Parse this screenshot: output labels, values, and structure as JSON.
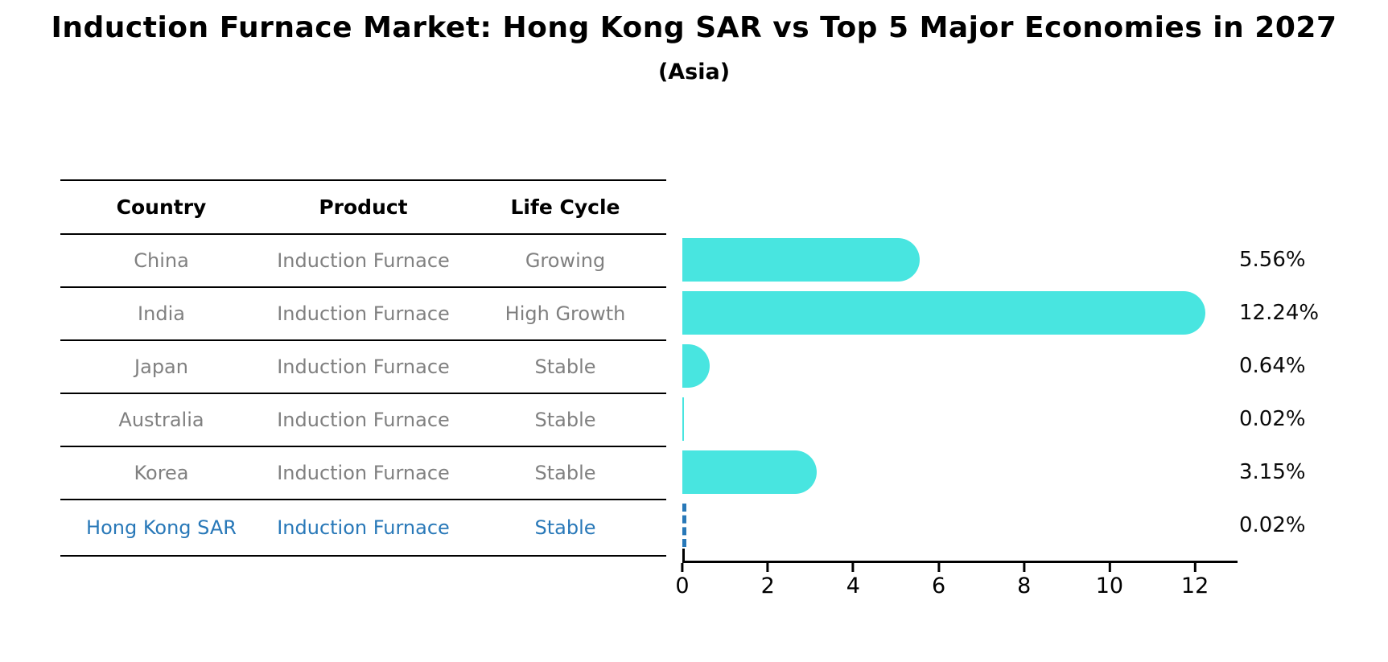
{
  "title": "Induction Furnace Market: Hong Kong SAR vs Top 5 Major Economies in 2027",
  "subtitle": "(Asia)",
  "table": {
    "headers": [
      "Country",
      "Product",
      "Life Cycle"
    ],
    "rows": [
      {
        "country": "China",
        "product": "Induction Furnace",
        "life_cycle": "Growing"
      },
      {
        "country": "India",
        "product": "Induction Furnace",
        "life_cycle": "High Growth"
      },
      {
        "country": "Japan",
        "product": "Induction Furnace",
        "life_cycle": "Stable"
      },
      {
        "country": "Australia",
        "product": "Induction Furnace",
        "life_cycle": "Stable"
      },
      {
        "country": "Korea",
        "product": "Induction Furnace",
        "life_cycle": "Stable"
      },
      {
        "country": "Hong Kong SAR",
        "product": "Induction Furnace",
        "life_cycle": "Stable"
      }
    ],
    "highlighted_row": "Hong Kong SAR"
  },
  "chart_data": {
    "type": "bar",
    "orientation": "horizontal",
    "categories": [
      "China",
      "India",
      "Japan",
      "Australia",
      "Korea",
      "Hong Kong SAR"
    ],
    "values": [
      5.56,
      12.24,
      0.64,
      0.02,
      3.15,
      0.02
    ],
    "value_labels": [
      "5.56%",
      "12.24%",
      "0.64%",
      "0.02%",
      "3.15%",
      "0.02%"
    ],
    "xlim": [
      0,
      12.94
    ],
    "xticks": [
      0,
      2,
      4,
      6,
      8,
      10,
      12
    ],
    "grid": false,
    "legend": false,
    "highlight_index": 5,
    "highlight_style": "dashed-outline"
  },
  "colors": {
    "title_text": "#000000",
    "table_body_text": "#808080",
    "bar_fill": "#48E5E0",
    "highlight_blue": "#2878B8",
    "axis": "#000000"
  }
}
